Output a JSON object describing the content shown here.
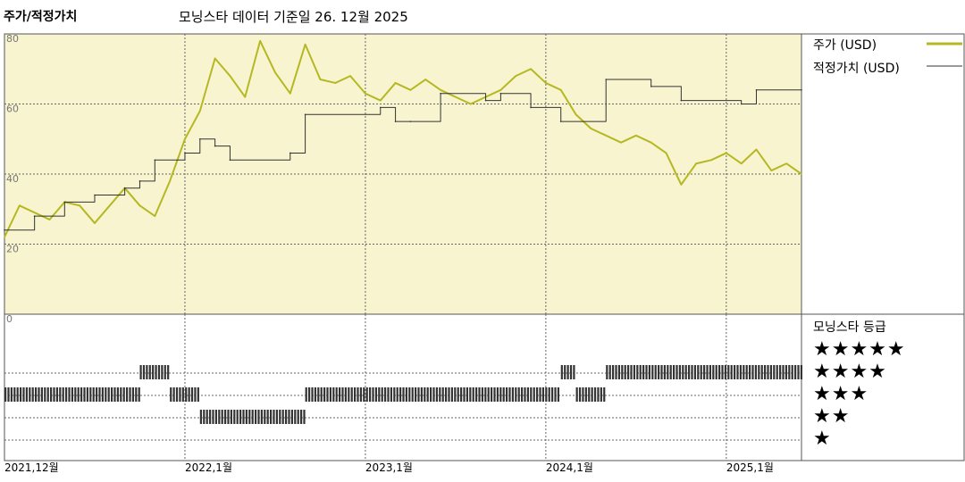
{
  "header": {
    "title": "주가/적정가치",
    "subtitle": "모닝스타 데이터 기준일 26. 12월 2025"
  },
  "colors": {
    "price": "#b5b822",
    "fair_value": "#333333",
    "upper_background": "#f8f4cf",
    "star_bar": "#333333"
  },
  "chart_data": {
    "type": "line",
    "y_axis": {
      "ylim": [
        0,
        80
      ],
      "ticks": [
        "80",
        "60",
        "40",
        "20",
        "0"
      ]
    },
    "x_axis": {
      "ticks": [
        "2021,12월",
        "2022,1월",
        "2023,1월",
        "2024,1월",
        "2025,1월"
      ]
    },
    "grid": true,
    "legend_position": "top-right",
    "series": [
      {
        "name": "주가 (USD)",
        "points": [
          [
            "2021-12",
            22
          ],
          [
            "2022-01",
            31
          ],
          [
            "2022-02",
            29
          ],
          [
            "2022-03",
            27
          ],
          [
            "2022-04",
            32
          ],
          [
            "2022-05",
            31
          ],
          [
            "2022-06",
            26
          ],
          [
            "2022-07",
            31
          ],
          [
            "2022-08",
            36
          ],
          [
            "2022-09",
            31
          ],
          [
            "2022-10",
            28
          ],
          [
            "2022-11",
            38
          ],
          [
            "2022-12",
            50
          ],
          [
            "2023-01",
            58
          ],
          [
            "2023-02",
            73
          ],
          [
            "2023-03",
            68
          ],
          [
            "2023-04",
            62
          ],
          [
            "2023-05",
            78
          ],
          [
            "2023-06",
            69
          ],
          [
            "2023-07",
            63
          ],
          [
            "2023-08",
            77
          ],
          [
            "2023-09",
            67
          ],
          [
            "2023-10",
            66
          ],
          [
            "2023-11",
            68
          ],
          [
            "2023-12",
            63
          ],
          [
            "2024-01",
            61
          ],
          [
            "2024-02",
            66
          ],
          [
            "2024-03",
            64
          ],
          [
            "2024-04",
            67
          ],
          [
            "2024-05",
            64
          ],
          [
            "2024-06",
            62
          ],
          [
            "2024-07",
            60
          ],
          [
            "2024-08",
            62
          ],
          [
            "2024-09",
            64
          ],
          [
            "2024-10",
            68
          ],
          [
            "2024-11",
            70
          ],
          [
            "2024-12",
            66
          ],
          [
            "2025-01",
            64
          ],
          [
            "2025-02",
            57
          ],
          [
            "2025-03",
            53
          ],
          [
            "2025-04",
            51
          ],
          [
            "2025-05",
            49
          ],
          [
            "2025-06",
            51
          ],
          [
            "2025-07",
            49
          ],
          [
            "2025-08",
            46
          ],
          [
            "2025-09",
            37
          ],
          [
            "2025-10",
            43
          ],
          [
            "2025-11",
            44
          ],
          [
            "2025-12",
            46
          ],
          [
            "2026-01",
            43
          ],
          [
            "2026-02",
            47
          ],
          [
            "2026-03",
            41
          ],
          [
            "2026-04",
            43
          ],
          [
            "2026-05",
            40
          ]
        ]
      },
      {
        "name": "적정가치 (USD)",
        "step": true,
        "points": [
          [
            "2021-12",
            24
          ],
          [
            "2022-02",
            28
          ],
          [
            "2022-04",
            32
          ],
          [
            "2022-06",
            34
          ],
          [
            "2022-08",
            36
          ],
          [
            "2022-09",
            38
          ],
          [
            "2022-10",
            44
          ],
          [
            "2022-12",
            46
          ],
          [
            "2023-01",
            50
          ],
          [
            "2023-02",
            48
          ],
          [
            "2023-03",
            44
          ],
          [
            "2023-07",
            46
          ],
          [
            "2023-08",
            57
          ],
          [
            "2024-01",
            59
          ],
          [
            "2024-02",
            55
          ],
          [
            "2024-03",
            55
          ],
          [
            "2024-05",
            63
          ],
          [
            "2024-08",
            61
          ],
          [
            "2024-09",
            63
          ],
          [
            "2024-11",
            59
          ],
          [
            "2025-01",
            55
          ],
          [
            "2025-04",
            67
          ],
          [
            "2025-07",
            65
          ],
          [
            "2025-09",
            61
          ],
          [
            "2026-01",
            60
          ],
          [
            "2026-02",
            64
          ],
          [
            "2026-05",
            64
          ]
        ]
      }
    ],
    "rating": {
      "title": "모닝스타 등급",
      "levels": [
        "★★★★★",
        "★★★★",
        "★★★",
        "★★",
        "★"
      ],
      "periods": [
        {
          "from": "2021-12",
          "to": "2022-09",
          "stars": 3
        },
        {
          "from": "2022-09",
          "to": "2022-11",
          "stars": 4
        },
        {
          "from": "2022-11",
          "to": "2023-01",
          "stars": 3
        },
        {
          "from": "2023-01",
          "to": "2023-08",
          "stars": 2
        },
        {
          "from": "2023-08",
          "to": "2025-01",
          "stars": 3
        },
        {
          "from": "2025-01",
          "to": "2025-02",
          "stars": 4
        },
        {
          "from": "2025-02",
          "to": "2025-04",
          "stars": 3
        },
        {
          "from": "2025-04",
          "to": "2026-05",
          "stars": 4
        }
      ]
    }
  }
}
